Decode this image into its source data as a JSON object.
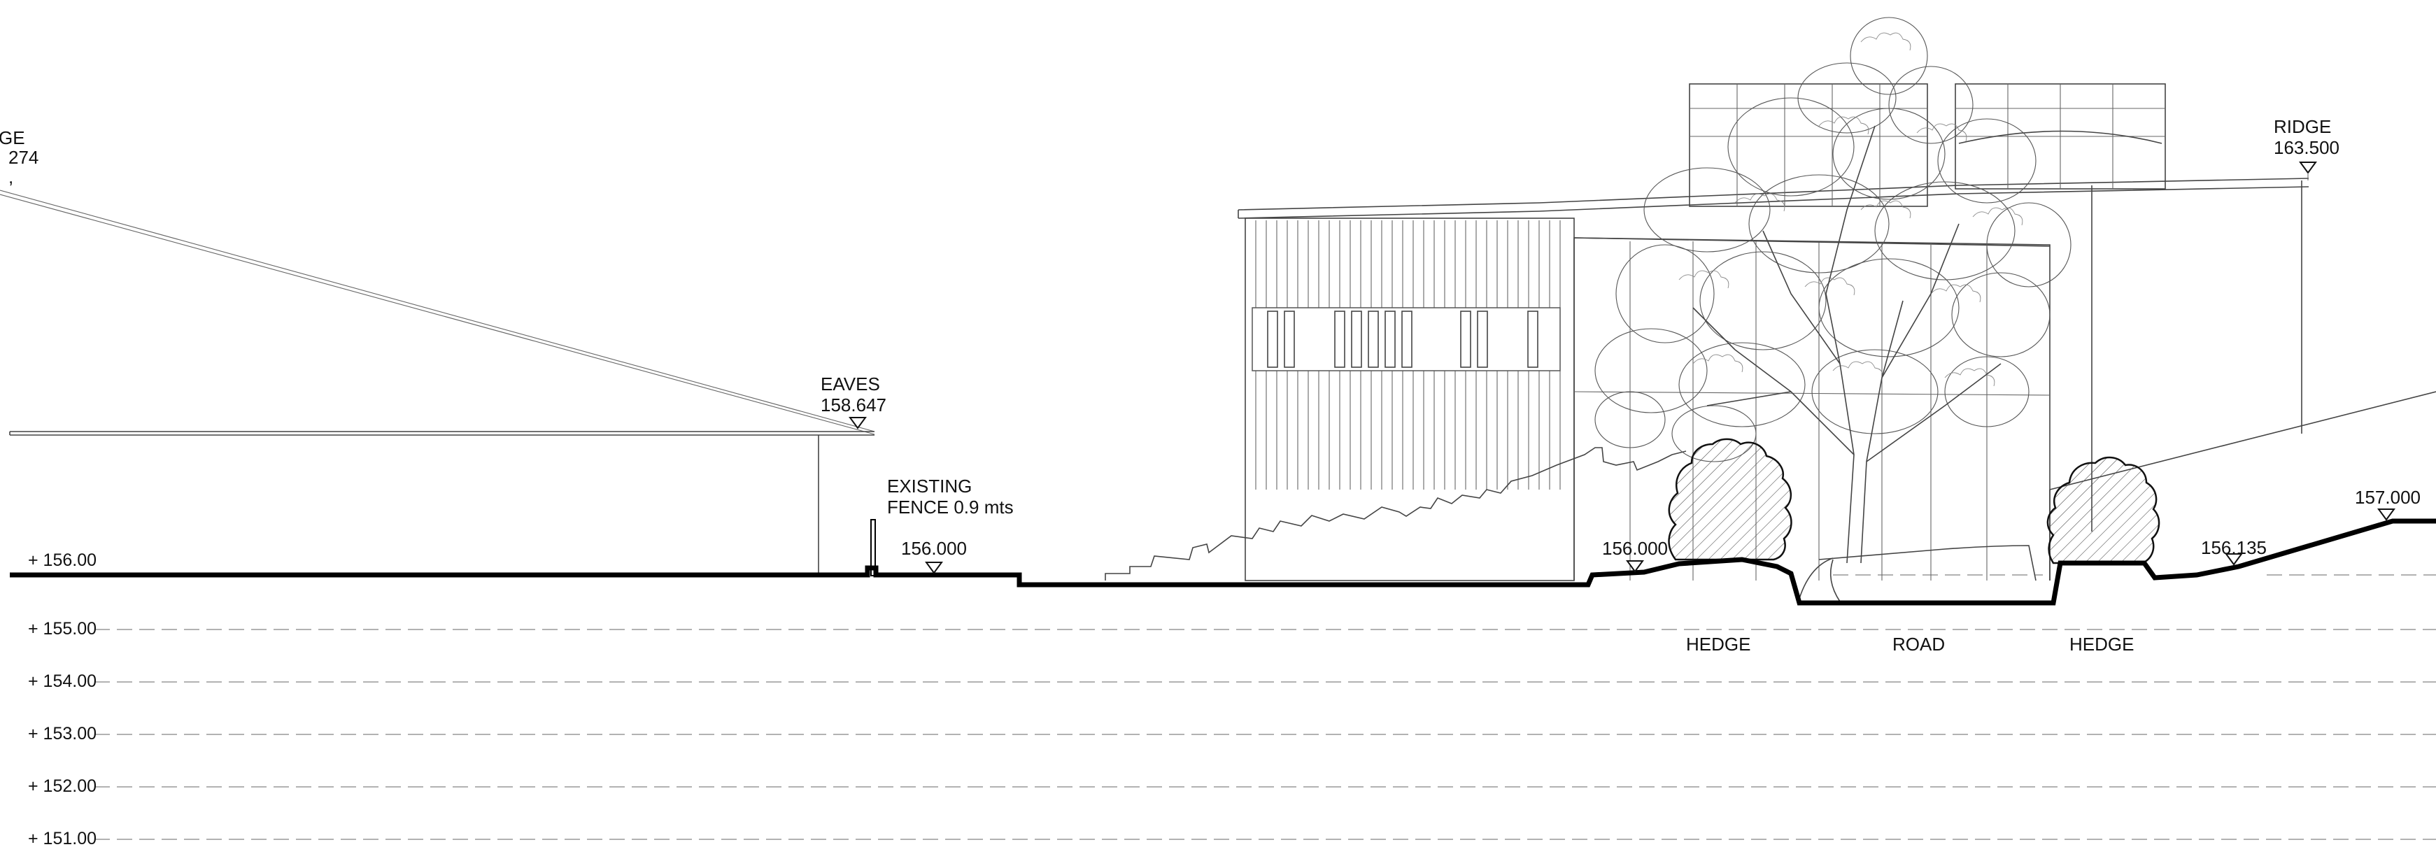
{
  "annotations": {
    "ridge_left_word": "GE",
    "ridge_left_value": "274",
    "eaves_word": "EAVES",
    "eaves_value": "158.647",
    "fence_line1": "EXISTING",
    "fence_line2": "FENCE 0.9 mts",
    "spot_level_1": "156.000",
    "spot_level_2": "156.000",
    "ridge_right_word": "RIDGE",
    "ridge_right_value": "163.500",
    "spot_level_3": "156.135",
    "spot_level_4": "157.000",
    "hedge_left": "HEDGE",
    "road": "ROAD",
    "hedge_right": "HEDGE"
  },
  "datum_levels": [
    "+ 156.00",
    "+ 155.00",
    "+ 154.00",
    "+ 153.00",
    "+ 152.00",
    "+ 151.00"
  ]
}
